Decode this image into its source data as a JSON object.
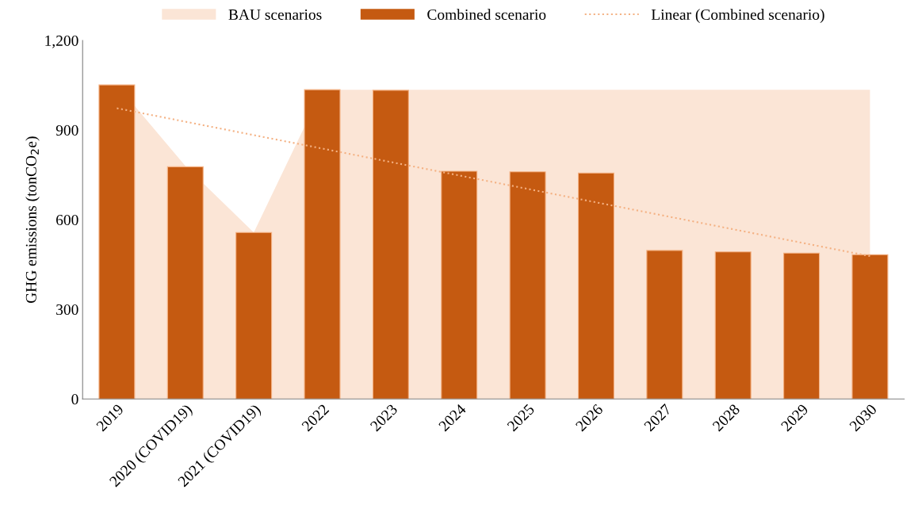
{
  "chart_data": {
    "type": "bar",
    "ylabel": "GHG emissions (tonCO$_{2}$e)",
    "categories": [
      "2019",
      "2020 (COVID19)",
      "2021 (COVID19)",
      "2022",
      "2023",
      "2024",
      "2025",
      "2026",
      "2027",
      "2028",
      "2029",
      "2030"
    ],
    "series": [
      {
        "name": "BAU scenarios",
        "type": "area",
        "color": "#fbe5d6",
        "values": [
          1051,
          780,
          557,
          1035,
          1035,
          1035,
          1035,
          1035,
          1035,
          1035,
          1035,
          1035
        ]
      },
      {
        "name": "Combined scenario",
        "color": "#c55a11",
        "values": [
          1051,
          777,
          557,
          1035,
          1033,
          762,
          760,
          756,
          497,
          492,
          488,
          483
        ]
      },
      {
        "name": "Linear (Combined scenario)",
        "type": "line",
        "color": "#f4b183",
        "line_style": "dotted",
        "values": [
          973,
          928,
          883,
          838,
          793,
          748,
          703,
          658,
          613,
          568,
          523,
          478
        ]
      }
    ],
    "ylim": [
      0,
      1200
    ],
    "yticks": [
      0,
      300,
      600,
      900,
      {
        "value": 1200,
        "label": "1,200"
      }
    ],
    "grid": false,
    "legend": "top",
    "marker": "none"
  }
}
